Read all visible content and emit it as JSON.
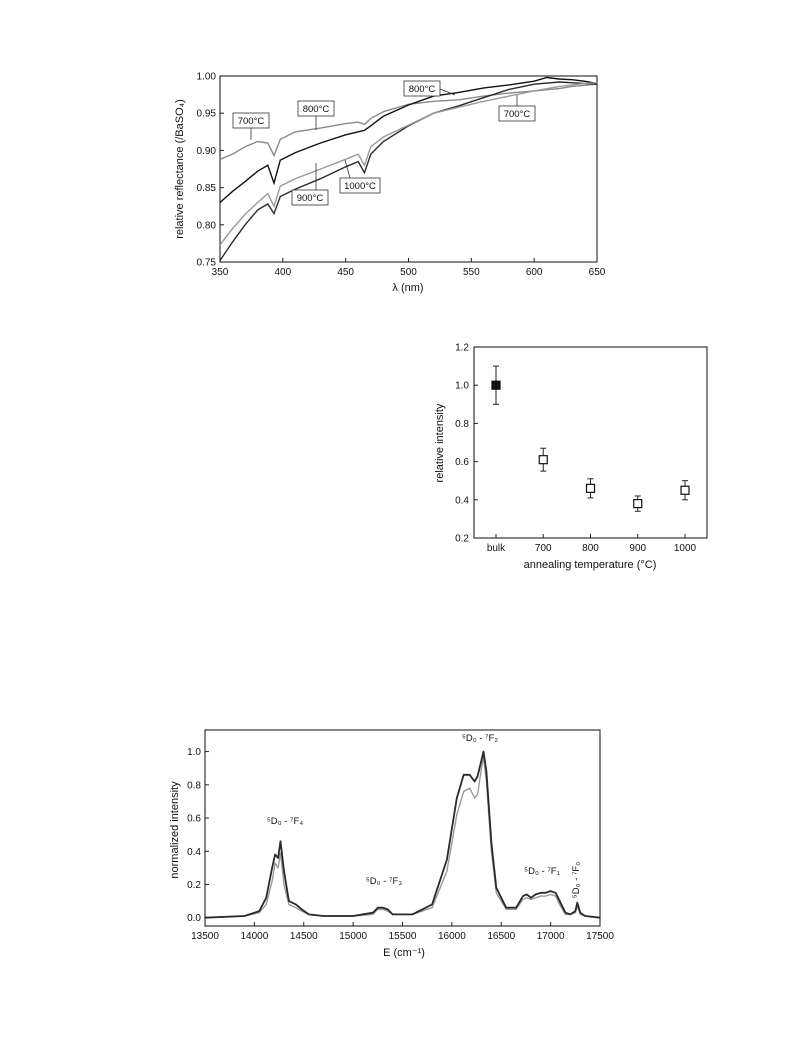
{
  "chart_data": [
    {
      "type": "line",
      "xlabel": "λ (nm)",
      "ylabel": "relative reflectance (/BaSO₄)",
      "xlim": [
        350,
        650
      ],
      "ylim": [
        0.75,
        1.0
      ],
      "xticks": [
        350,
        400,
        450,
        500,
        550,
        600,
        650
      ],
      "yticks": [
        "0.75",
        "0.80",
        "0.85",
        "0.90",
        "0.95",
        "1.00"
      ],
      "series": [
        {
          "name": "700°C",
          "color": "#8a8a8a",
          "x": [
            350,
            360,
            370,
            380,
            388,
            393,
            398,
            410,
            430,
            450,
            460,
            465,
            470,
            480,
            500,
            520,
            540,
            560,
            580,
            600,
            620,
            630,
            650
          ],
          "y": [
            0.888,
            0.895,
            0.905,
            0.912,
            0.91,
            0.893,
            0.915,
            0.925,
            0.93,
            0.936,
            0.938,
            0.935,
            0.943,
            0.952,
            0.962,
            0.966,
            0.968,
            0.973,
            0.977,
            0.98,
            0.983,
            0.986,
            0.989
          ]
        },
        {
          "name": "800°C",
          "color": "#111111",
          "x": [
            350,
            360,
            370,
            380,
            388,
            393,
            398,
            410,
            430,
            450,
            460,
            465,
            470,
            480,
            500,
            520,
            540,
            560,
            580,
            600,
            610,
            620,
            630,
            640,
            650
          ],
          "y": [
            0.83,
            0.845,
            0.858,
            0.872,
            0.88,
            0.856,
            0.887,
            0.897,
            0.91,
            0.921,
            0.925,
            0.927,
            0.933,
            0.946,
            0.961,
            0.973,
            0.978,
            0.984,
            0.988,
            0.993,
            0.998,
            0.996,
            0.995,
            0.993,
            0.99
          ]
        },
        {
          "name": "900°C",
          "color": "#2b2b2b",
          "x": [
            350,
            360,
            370,
            380,
            388,
            393,
            398,
            410,
            430,
            450,
            460,
            465,
            470,
            480,
            500,
            520,
            540,
            560,
            580,
            600,
            620,
            640,
            650
          ],
          "y": [
            0.752,
            0.777,
            0.8,
            0.82,
            0.828,
            0.815,
            0.838,
            0.848,
            0.862,
            0.878,
            0.885,
            0.87,
            0.895,
            0.912,
            0.933,
            0.95,
            0.96,
            0.971,
            0.982,
            0.989,
            0.992,
            0.99,
            0.989
          ]
        },
        {
          "name": "1000°C",
          "color": "#9a9a9a",
          "x": [
            350,
            360,
            370,
            380,
            388,
            393,
            398,
            410,
            430,
            450,
            460,
            465,
            470,
            480,
            500,
            520,
            540,
            560,
            580,
            600,
            620,
            640,
            650
          ],
          "y": [
            0.773,
            0.795,
            0.814,
            0.83,
            0.842,
            0.825,
            0.852,
            0.862,
            0.875,
            0.888,
            0.895,
            0.88,
            0.905,
            0.918,
            0.934,
            0.95,
            0.958,
            0.966,
            0.973,
            0.98,
            0.986,
            0.99,
            0.991
          ]
        }
      ],
      "annotations": [
        {
          "text": "700°C"
        },
        {
          "text": "800°C"
        },
        {
          "text": "900°C"
        },
        {
          "text": "1000°C"
        },
        {
          "text": "800°C"
        },
        {
          "text": "700°C"
        }
      ]
    },
    {
      "type": "scatter",
      "xlabel": "annealing temperature (°C)",
      "ylabel": "relative intensity",
      "ylim": [
        0.2,
        1.2
      ],
      "categories": [
        "bulk",
        "700",
        "800",
        "900",
        "1000"
      ],
      "yticks": [
        "0.2",
        "0.4",
        "0.6",
        "0.8",
        "1.0",
        "1.2"
      ],
      "values": [
        1.0,
        0.61,
        0.46,
        0.38,
        0.45
      ],
      "errors": [
        0.1,
        0.06,
        0.05,
        0.04,
        0.05
      ],
      "filled": [
        true,
        false,
        false,
        false,
        false
      ]
    },
    {
      "type": "line",
      "xlabel": "E (cm⁻¹)",
      "ylabel": "normalized intensity",
      "xlim": [
        13500,
        17500
      ],
      "ylim": [
        -0.05,
        1.13
      ],
      "xticks": [
        "13500",
        "14000",
        "14500",
        "15000",
        "15500",
        "16000",
        "16500",
        "17000",
        "17500"
      ],
      "yticks": [
        "0.0",
        "0.2",
        "0.4",
        "0.6",
        "0.8",
        "1.0"
      ],
      "series": [
        {
          "color": "#2a2a2a",
          "x": [
            13500,
            13900,
            14050,
            14120,
            14180,
            14210,
            14240,
            14265,
            14300,
            14350,
            14420,
            14480,
            14550,
            14700,
            15000,
            15200,
            15250,
            15300,
            15350,
            15400,
            15600,
            15800,
            15950,
            16050,
            16120,
            16180,
            16230,
            16260,
            16300,
            16320,
            16350,
            16400,
            16450,
            16550,
            16650,
            16720,
            16760,
            16800,
            16850,
            16900,
            16950,
            17000,
            17050,
            17100,
            17150,
            17200,
            17250,
            17270,
            17300,
            17350,
            17500
          ],
          "y": [
            0.0,
            0.01,
            0.04,
            0.12,
            0.3,
            0.38,
            0.36,
            0.46,
            0.28,
            0.1,
            0.08,
            0.05,
            0.02,
            0.01,
            0.01,
            0.03,
            0.06,
            0.06,
            0.05,
            0.02,
            0.02,
            0.08,
            0.35,
            0.72,
            0.86,
            0.86,
            0.82,
            0.85,
            0.95,
            1.0,
            0.88,
            0.45,
            0.18,
            0.06,
            0.06,
            0.13,
            0.14,
            0.12,
            0.14,
            0.15,
            0.15,
            0.16,
            0.15,
            0.09,
            0.03,
            0.02,
            0.04,
            0.09,
            0.03,
            0.01,
            0.0
          ]
        },
        {
          "color": "#9a9a9a",
          "x": [
            13500,
            13900,
            14050,
            14120,
            14180,
            14210,
            14240,
            14265,
            14300,
            14350,
            14420,
            14480,
            14550,
            14700,
            15000,
            15200,
            15250,
            15300,
            15350,
            15400,
            15600,
            15800,
            15950,
            16050,
            16120,
            16180,
            16230,
            16260,
            16300,
            16320,
            16350,
            16400,
            16450,
            16550,
            16650,
            16720,
            16760,
            16800,
            16850,
            16900,
            16950,
            17000,
            17050,
            17100,
            17150,
            17200,
            17250,
            17270,
            17300,
            17350,
            17500
          ],
          "y": [
            0.0,
            0.01,
            0.03,
            0.08,
            0.22,
            0.33,
            0.3,
            0.39,
            0.2,
            0.08,
            0.06,
            0.04,
            0.02,
            0.01,
            0.01,
            0.02,
            0.05,
            0.05,
            0.04,
            0.02,
            0.02,
            0.06,
            0.28,
            0.62,
            0.76,
            0.78,
            0.72,
            0.74,
            0.9,
            0.97,
            0.82,
            0.4,
            0.15,
            0.05,
            0.05,
            0.11,
            0.12,
            0.11,
            0.12,
            0.13,
            0.13,
            0.14,
            0.13,
            0.07,
            0.02,
            0.02,
            0.03,
            0.07,
            0.02,
            0.01,
            0.0
          ]
        }
      ],
      "annotations": [
        {
          "text": "⁵D₀ - ⁷F₄"
        },
        {
          "text": "⁵D₀ - ⁷F₃"
        },
        {
          "text": "⁵D₀ - ⁷F₂"
        },
        {
          "text": "⁵D₀ - ⁷F₁"
        },
        {
          "text": "⁵D₀ - ⁷F₀"
        }
      ]
    }
  ]
}
